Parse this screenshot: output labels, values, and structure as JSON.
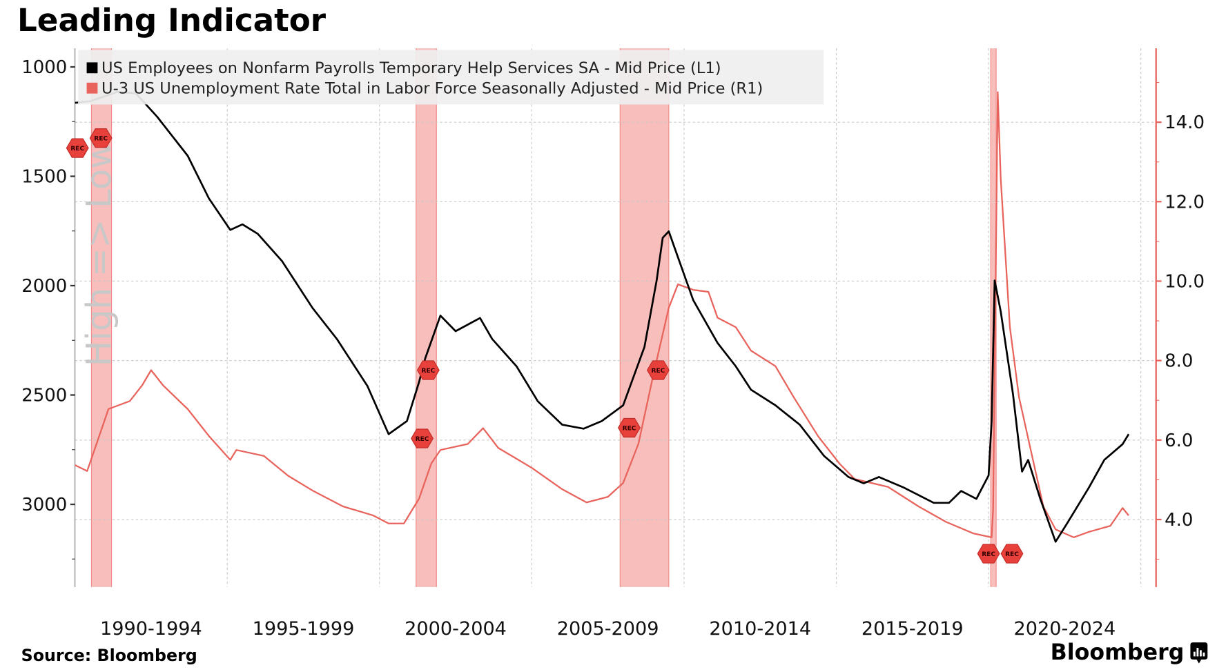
{
  "chart_data": {
    "type": "line",
    "title": "Leading Indicator",
    "source": "Source: Bloomberg",
    "brand": "Bloomberg",
    "axis_annotation": "High => Low",
    "x_range": [
      1990.0,
      2025.5
    ],
    "x_tick_labels": [
      "1990-1994",
      "1995-1999",
      "2000-2004",
      "2005-2009",
      "2010-2014",
      "2015-2019",
      "2020-2024"
    ],
    "x_tick_label_years": [
      1992.5,
      1997.5,
      2002.5,
      2007.5,
      2012.5,
      2017.5,
      2022.5
    ],
    "x_grid_years": [
      1995,
      2000,
      2005,
      2010,
      2015,
      2020,
      2025
    ],
    "left_axis": {
      "inverted": true,
      "range": [
        915,
        3378
      ],
      "ticks": [
        1000,
        1500,
        2000,
        2500,
        3000
      ],
      "tick_labels": [
        "1000",
        "1500",
        "2000",
        "2500",
        "3000"
      ],
      "minor_ticks": [
        1250,
        1750,
        2250,
        2750,
        3250
      ]
    },
    "right_axis": {
      "range": [
        2.3,
        15.86
      ],
      "ticks": [
        4,
        6,
        8,
        10,
        12,
        14
      ],
      "tick_labels": [
        "4.0",
        "6.0",
        "8.0",
        "10.0",
        "12.0",
        "14.0"
      ],
      "minor_ticks": [
        3,
        5,
        7,
        9,
        11,
        13,
        15
      ],
      "color": "#e8635c"
    },
    "grid": true,
    "legend_position": "top-left",
    "recessions": [
      [
        1990.54,
        1991.2
      ],
      [
        2001.2,
        2001.87
      ],
      [
        2007.9,
        2009.5
      ],
      [
        2020.07,
        2020.25
      ]
    ],
    "rec_label": "REC",
    "rec_markers": [
      {
        "year": 1990.85,
        "value": 13.6
      },
      {
        "year": 1990.65,
        "value": 13.35
      },
      {
        "year": 2001.6,
        "value": 7.76
      },
      {
        "year": 2001.4,
        "value": 6.04
      },
      {
        "year": 2008.2,
        "value": 6.31
      },
      {
        "year": 2009.15,
        "value": 7.76
      },
      {
        "year": 2020.0,
        "value": 3.14
      },
      {
        "year": 2020.35,
        "value": 3.14
      }
    ],
    "series": [
      {
        "name": "US Employees on Nonfarm Payrolls Temporary Help Services SA - Mid Price (L1)",
        "axis": "left",
        "color": "#000000",
        "x": [
          1990.0,
          1990.5,
          1991.4,
          1992.0,
          1992.7,
          1993.7,
          1994.4,
          1995.1,
          1995.5,
          1996.0,
          1996.8,
          1997.8,
          1998.6,
          1999.6,
          2000.3,
          2000.9,
          2001.3,
          2001.5,
          2002.0,
          2002.5,
          2003.3,
          2003.7,
          2004.5,
          2005.2,
          2006.0,
          2006.7,
          2007.3,
          2008.0,
          2008.7,
          2009.1,
          2009.3,
          2009.5,
          2009.8,
          2010.3,
          2011.1,
          2011.7,
          2012.2,
          2013.0,
          2013.8,
          2014.6,
          2015.4,
          2015.9,
          2016.4,
          2017.2,
          2018.2,
          2018.7,
          2019.1,
          2019.6,
          2020.0,
          2020.1,
          2020.2,
          2020.4,
          2020.8,
          2021.1,
          2021.3,
          2021.7,
          2022.2,
          2022.6,
          2023.3,
          2023.8,
          2024.4,
          2024.6
        ],
        "y": [
          1164,
          1157,
          1114,
          1121,
          1228,
          1406,
          1602,
          1745,
          1720,
          1763,
          1888,
          2102,
          2244,
          2458,
          2679,
          2619,
          2440,
          2333,
          2137,
          2208,
          2148,
          2244,
          2369,
          2529,
          2636,
          2654,
          2619,
          2547,
          2280,
          1977,
          1781,
          1752,
          1870,
          2066,
          2262,
          2369,
          2476,
          2547,
          2636,
          2779,
          2875,
          2904,
          2875,
          2922,
          2993,
          2993,
          2939,
          2975,
          2868,
          2619,
          1977,
          2119,
          2494,
          2850,
          2797,
          2975,
          3171,
          3082,
          2922,
          2797,
          2725,
          2679
        ]
      },
      {
        "name": "U-3 US Unemployment Rate Total in Labor Force Seasonally Adjusted - Mid Price (R1)",
        "axis": "right",
        "color": "#e8635c",
        "x": [
          1990.0,
          1990.4,
          1990.75,
          1991.1,
          1991.8,
          1992.2,
          1992.5,
          1992.9,
          1993.7,
          1994.4,
          1995.1,
          1995.3,
          1996.2,
          1997.0,
          1997.8,
          1998.8,
          1999.8,
          2000.3,
          2000.8,
          2001.3,
          2001.7,
          2002.0,
          2002.9,
          2003.4,
          2003.9,
          2005.0,
          2006.0,
          2006.8,
          2007.5,
          2008.0,
          2008.5,
          2009.0,
          2009.5,
          2009.8,
          2010.3,
          2010.8,
          2011.1,
          2011.7,
          2012.2,
          2013.0,
          2013.6,
          2014.4,
          2015.1,
          2015.6,
          2016.7,
          2017.7,
          2018.6,
          2019.5,
          2020.1,
          2020.15,
          2020.3,
          2020.4,
          2020.7,
          2021.0,
          2021.4,
          2021.8,
          2022.2,
          2022.8,
          2023.3,
          2024.0,
          2024.4,
          2024.6
        ],
        "y": [
          5.37,
          5.22,
          6.0,
          6.78,
          6.98,
          7.37,
          7.76,
          7.37,
          6.78,
          6.1,
          5.5,
          5.75,
          5.6,
          5.1,
          4.73,
          4.33,
          4.1,
          3.9,
          3.9,
          4.53,
          5.41,
          5.75,
          5.9,
          6.3,
          5.8,
          5.3,
          4.76,
          4.43,
          4.57,
          4.92,
          5.9,
          7.67,
          9.33,
          9.92,
          9.78,
          9.73,
          9.08,
          8.84,
          8.25,
          7.86,
          7.08,
          6.1,
          5.41,
          5.02,
          4.82,
          4.33,
          3.94,
          3.65,
          3.55,
          4.24,
          14.76,
          12.57,
          8.84,
          7.08,
          5.7,
          4.33,
          3.75,
          3.55,
          3.69,
          3.84,
          4.29,
          4.1
        ]
      }
    ]
  }
}
